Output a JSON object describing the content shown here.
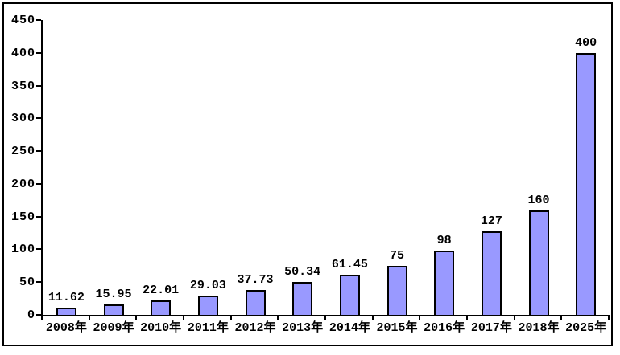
{
  "chart_data": {
    "type": "bar",
    "title": "",
    "xlabel": "",
    "ylabel": "",
    "categories": [
      "2008年",
      "2009年",
      "2010年",
      "2011年",
      "2012年",
      "2013年",
      "2014年",
      "2015年",
      "2016年",
      "2017年",
      "2018年",
      "2025年"
    ],
    "values": [
      11.62,
      15.95,
      22.01,
      29.03,
      37.73,
      50.34,
      61.45,
      75,
      98,
      127,
      160,
      400
    ],
    "value_labels": [
      "11.62",
      "15.95",
      "22.01",
      "29.03",
      "37.73",
      "50.34",
      "61.45",
      "75",
      "98",
      "127",
      "160",
      "400"
    ],
    "ylim": [
      0,
      450
    ],
    "ytick_interval": 50,
    "ytick_labels": [
      "0",
      "50",
      "100",
      "150",
      "200",
      "250",
      "300",
      "350",
      "400",
      "450"
    ],
    "grid": false,
    "legend_position": "none",
    "bar_fill_color": "#9999FF",
    "bar_border_color": "#000000",
    "axis_color": "#000000",
    "frame_border_color": "#000000",
    "background_color": "#FFFFFF",
    "text_color": "#000000"
  }
}
